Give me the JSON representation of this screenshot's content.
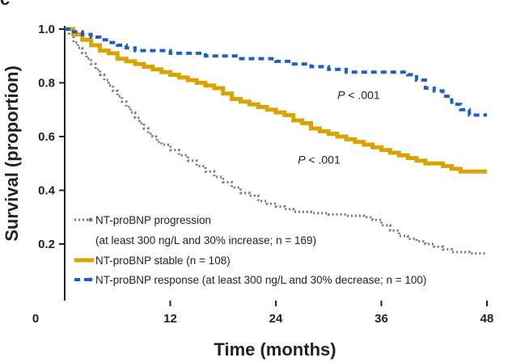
{
  "corner_letter": "c",
  "chart_data": {
    "type": "line",
    "subtype": "kaplan-meier",
    "title": "",
    "xlabel": "Time (months)",
    "ylabel": "Survival (proportion)",
    "xlim": [
      0,
      48
    ],
    "ylim": [
      0.1,
      1.0
    ],
    "x_ticks": [
      0,
      12,
      24,
      36,
      48
    ],
    "y_ticks": [
      1.0,
      0.8,
      0.6,
      0.4,
      0.2
    ],
    "y_tick_labels": [
      "1.0",
      "0.8",
      "0.6",
      "0.4",
      "0.2"
    ],
    "x_tick_labels": [
      "0",
      "12",
      "24",
      "36",
      "48"
    ],
    "series": [
      {
        "name": "NT-proBNP progression",
        "legend_label": "NT-proBNP progression",
        "legend_label_line2": "(at least 300 ng/L and 30% increase; n = 169)",
        "color": "#777777",
        "style": "dotted",
        "points": [
          [
            0,
            1.0
          ],
          [
            0.5,
            0.98
          ],
          [
            1,
            0.95
          ],
          [
            1.5,
            0.93
          ],
          [
            2,
            0.91
          ],
          [
            2.5,
            0.89
          ],
          [
            3,
            0.87
          ],
          [
            3.5,
            0.85
          ],
          [
            4,
            0.83
          ],
          [
            4.5,
            0.81
          ],
          [
            5,
            0.79
          ],
          [
            5.5,
            0.77
          ],
          [
            6,
            0.75
          ],
          [
            6.5,
            0.73
          ],
          [
            7,
            0.71
          ],
          [
            7.5,
            0.69
          ],
          [
            8,
            0.67
          ],
          [
            8.5,
            0.65
          ],
          [
            9,
            0.63
          ],
          [
            9.5,
            0.61
          ],
          [
            10,
            0.6
          ],
          [
            10.5,
            0.58
          ],
          [
            11,
            0.57
          ],
          [
            12,
            0.55
          ],
          [
            13,
            0.53
          ],
          [
            14,
            0.51
          ],
          [
            15,
            0.49
          ],
          [
            16,
            0.47
          ],
          [
            17,
            0.45
          ],
          [
            18,
            0.43
          ],
          [
            19,
            0.41
          ],
          [
            20,
            0.39
          ],
          [
            21,
            0.38
          ],
          [
            22,
            0.36
          ],
          [
            23,
            0.35
          ],
          [
            24,
            0.34
          ],
          [
            25,
            0.33
          ],
          [
            26,
            0.32
          ],
          [
            28,
            0.315
          ],
          [
            30,
            0.31
          ],
          [
            32,
            0.305
          ],
          [
            34,
            0.3
          ],
          [
            35,
            0.29
          ],
          [
            36,
            0.27
          ],
          [
            37,
            0.25
          ],
          [
            38,
            0.23
          ],
          [
            39,
            0.22
          ],
          [
            40,
            0.21
          ],
          [
            41,
            0.2
          ],
          [
            42,
            0.19
          ],
          [
            43,
            0.18
          ],
          [
            44,
            0.17
          ],
          [
            46,
            0.165
          ],
          [
            48,
            0.165
          ]
        ]
      },
      {
        "name": "NT-proBNP stable",
        "legend_label": "NT-proBNP stable (n = 108)",
        "color": "#d9a300",
        "style": "solid",
        "points": [
          [
            0,
            1.0
          ],
          [
            1,
            0.98
          ],
          [
            2,
            0.96
          ],
          [
            3,
            0.94
          ],
          [
            4,
            0.92
          ],
          [
            5,
            0.91
          ],
          [
            6,
            0.89
          ],
          [
            7,
            0.88
          ],
          [
            8,
            0.87
          ],
          [
            9,
            0.86
          ],
          [
            10,
            0.85
          ],
          [
            11,
            0.84
          ],
          [
            12,
            0.83
          ],
          [
            13,
            0.82
          ],
          [
            14,
            0.81
          ],
          [
            15,
            0.8
          ],
          [
            16,
            0.79
          ],
          [
            17,
            0.78
          ],
          [
            18,
            0.76
          ],
          [
            19,
            0.74
          ],
          [
            20,
            0.73
          ],
          [
            21,
            0.72
          ],
          [
            22,
            0.71
          ],
          [
            23,
            0.7
          ],
          [
            24,
            0.69
          ],
          [
            25,
            0.68
          ],
          [
            26,
            0.66
          ],
          [
            27,
            0.65
          ],
          [
            28,
            0.63
          ],
          [
            29,
            0.62
          ],
          [
            30,
            0.61
          ],
          [
            31,
            0.6
          ],
          [
            32,
            0.59
          ],
          [
            33,
            0.58
          ],
          [
            34,
            0.57
          ],
          [
            35,
            0.56
          ],
          [
            36,
            0.55
          ],
          [
            37,
            0.54
          ],
          [
            38,
            0.53
          ],
          [
            39,
            0.52
          ],
          [
            40,
            0.51
          ],
          [
            41,
            0.5
          ],
          [
            42,
            0.5
          ],
          [
            43,
            0.49
          ],
          [
            44,
            0.48
          ],
          [
            45,
            0.47
          ],
          [
            46,
            0.47
          ],
          [
            48,
            0.47
          ]
        ]
      },
      {
        "name": "NT-proBNP response",
        "legend_label": "NT-proBNP response (at least 300 ng/L and 30% decrease; n = 100)",
        "color": "#1f5fbf",
        "style": "dashed",
        "points": [
          [
            0,
            1.0
          ],
          [
            1,
            0.99
          ],
          [
            2,
            0.98
          ],
          [
            3,
            0.97
          ],
          [
            4,
            0.96
          ],
          [
            5,
            0.95
          ],
          [
            6,
            0.94
          ],
          [
            7,
            0.93
          ],
          [
            8,
            0.92
          ],
          [
            10,
            0.92
          ],
          [
            12,
            0.91
          ],
          [
            14,
            0.91
          ],
          [
            16,
            0.9
          ],
          [
            18,
            0.9
          ],
          [
            20,
            0.89
          ],
          [
            22,
            0.89
          ],
          [
            24,
            0.88
          ],
          [
            26,
            0.87
          ],
          [
            28,
            0.86
          ],
          [
            30,
            0.85
          ],
          [
            32,
            0.84
          ],
          [
            34,
            0.84
          ],
          [
            36,
            0.84
          ],
          [
            38,
            0.84
          ],
          [
            39,
            0.83
          ],
          [
            40,
            0.81
          ],
          [
            41,
            0.78
          ],
          [
            42,
            0.77
          ],
          [
            43,
            0.75
          ],
          [
            44,
            0.72
          ],
          [
            45,
            0.7
          ],
          [
            46,
            0.68
          ],
          [
            48,
            0.68
          ]
        ]
      }
    ],
    "annotations": [
      {
        "prefix": "P",
        "text": " < .001",
        "x": 31,
        "y": 0.74
      },
      {
        "prefix": "P",
        "text": " < .001",
        "x": 26.5,
        "y": 0.5
      }
    ],
    "legend_position": "bottom-left"
  }
}
